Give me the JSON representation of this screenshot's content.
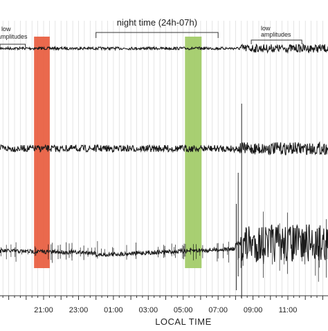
{
  "chart_data": {
    "type": "line",
    "xlabel": "LOCAL TIME",
    "x_ticks": [
      "21:00",
      "23:00",
      "01:00",
      "03:00",
      "05:00",
      "07:00",
      "09:00",
      "11:00"
    ],
    "x_tick_hours": [
      21,
      23,
      25,
      27,
      29,
      31,
      33,
      35
    ],
    "xlim_hours": [
      18.5,
      37.3
    ],
    "grid": "vertical gridlines every 20 minutes",
    "highlight_bands": [
      {
        "start_hour": 20.45,
        "end_hour": 21.35,
        "color": "#e8593a"
      },
      {
        "start_hour": 29.1,
        "end_hour": 30.05,
        "color": "#9fca63"
      }
    ],
    "annotations": [
      {
        "text": "low",
        "start_hour": 18.5,
        "end_hour": 19.95
      },
      {
        "text": "amplitudes",
        "start_hour": null,
        "end_hour": null
      },
      {
        "text": "night time (24h-07h)",
        "start_hour": 24.0,
        "end_hour": 31.0
      },
      {
        "text": "low",
        "start_hour": 32.9,
        "end_hour": 35.8
      },
      {
        "text": "amplitudes",
        "start_hour": null,
        "end_hour": null
      }
    ],
    "traces": [
      {
        "quiet_amplitude": 2,
        "noisy_amplitude": 6,
        "noise_onset_hour": 32.2,
        "drift": false
      },
      {
        "quiet_amplitude": 5,
        "noisy_amplitude": 9,
        "noise_onset_hour": 32.2,
        "drift": false
      },
      {
        "quiet_amplitude": 3,
        "noisy_amplitude": 28,
        "noise_onset_hour": 32.3,
        "drift": true
      }
    ],
    "trace_color": "#1a1a1a"
  }
}
